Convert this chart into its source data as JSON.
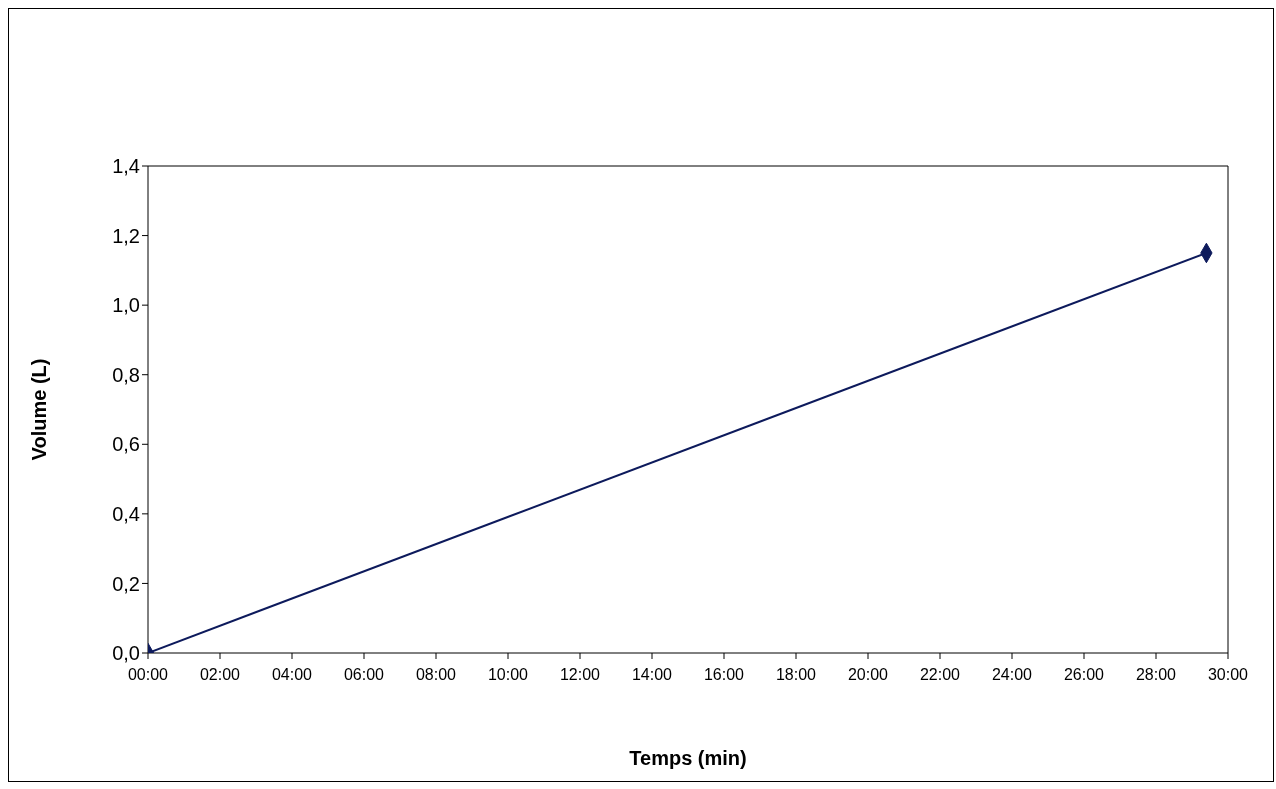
{
  "chart_data": {
    "type": "line",
    "xlabel": "Temps (min)",
    "ylabel": "Volume (L)",
    "x": [
      0,
      29.4
    ],
    "series": [
      {
        "color": "#0d1a5c",
        "values": [
          0,
          1.15
        ]
      }
    ],
    "xlim": [
      0,
      30
    ],
    "xticks": [
      {
        "value": 0,
        "label": "00:00"
      },
      {
        "value": 2,
        "label": "02:00"
      },
      {
        "value": 4,
        "label": "04:00"
      },
      {
        "value": 6,
        "label": "06:00"
      },
      {
        "value": 8,
        "label": "08:00"
      },
      {
        "value": 10,
        "label": "10:00"
      },
      {
        "value": 12,
        "label": "12:00"
      },
      {
        "value": 14,
        "label": "14:00"
      },
      {
        "value": 16,
        "label": "16:00"
      },
      {
        "value": 18,
        "label": "18:00"
      },
      {
        "value": 20,
        "label": "20:00"
      },
      {
        "value": 22,
        "label": "22:00"
      },
      {
        "value": 24,
        "label": "24:00"
      },
      {
        "value": 26,
        "label": "26:00"
      },
      {
        "value": 28,
        "label": "28:00"
      },
      {
        "value": 30,
        "label": "30:00"
      }
    ],
    "ylim": [
      0,
      1.4
    ],
    "yticks": [
      {
        "value": 0,
        "label": "0,0"
      },
      {
        "value": 0.2,
        "label": "0,2"
      },
      {
        "value": 0.4,
        "label": "0,4"
      },
      {
        "value": 0.6,
        "label": "0,6"
      },
      {
        "value": 0.8,
        "label": "0,8"
      },
      {
        "value": 1,
        "label": "1,0"
      },
      {
        "value": 1.2,
        "label": "1,2"
      },
      {
        "value": 1.4,
        "label": "1,4"
      }
    ],
    "grid": false,
    "legend": false,
    "marker": "diamond",
    "line_style": "solid"
  }
}
